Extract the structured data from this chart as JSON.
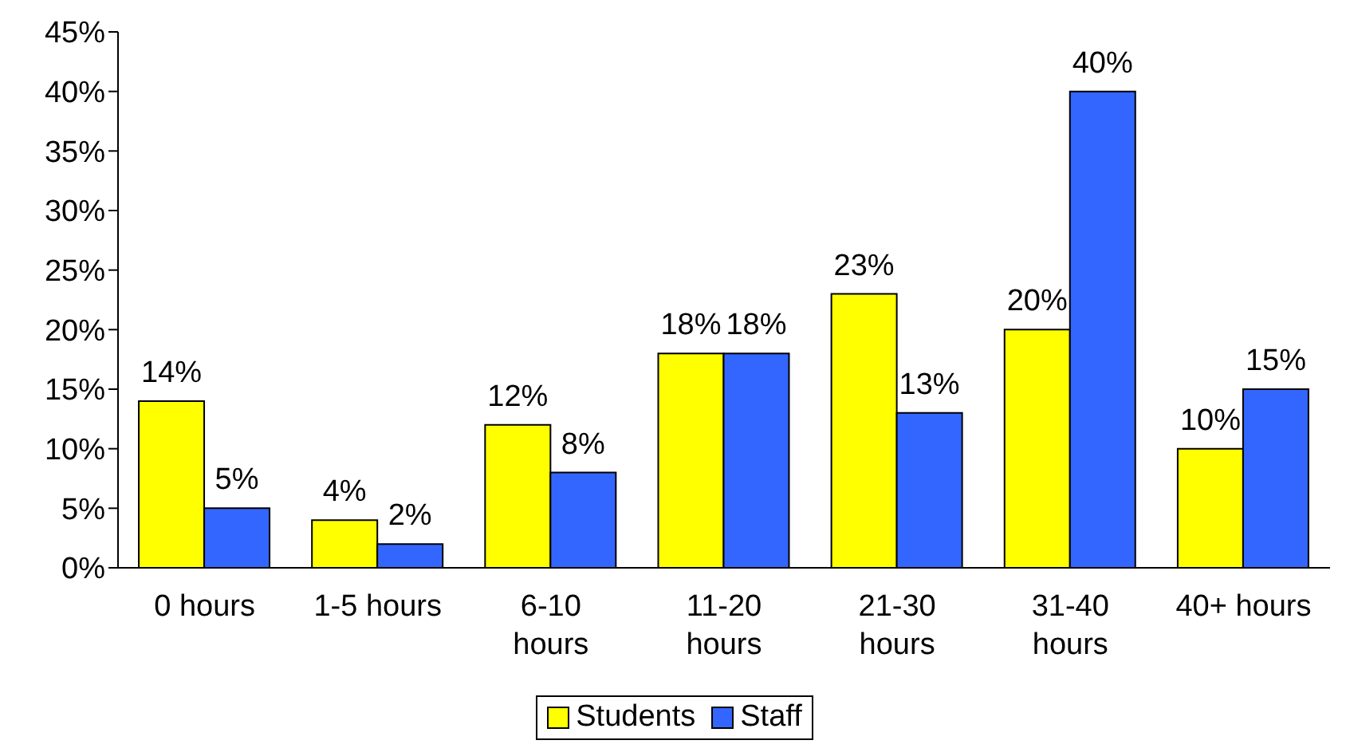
{
  "chart_data": {
    "type": "bar",
    "categories": [
      "0 hours",
      "1-5 hours",
      "6-10 hours",
      "11-20 hours",
      "21-30 hours",
      "31-40 hours",
      "40+ hours"
    ],
    "series": [
      {
        "name": "Students",
        "color": "#ffff00",
        "values": [
          14,
          4,
          12,
          18,
          23,
          20,
          10
        ],
        "value_labels": [
          "14%",
          "4%",
          "12%",
          "18%",
          "23%",
          "20%",
          "10%"
        ]
      },
      {
        "name": "Staff",
        "color": "#3366ff",
        "values": [
          5,
          2,
          8,
          18,
          13,
          40,
          15
        ],
        "value_labels": [
          "5%",
          "2%",
          "8%",
          "18%",
          "13%",
          "40%",
          "15%"
        ]
      }
    ],
    "ylim": [
      0,
      45
    ],
    "yticks": [
      {
        "value": 0,
        "label": "0%"
      },
      {
        "value": 5,
        "label": "5%"
      },
      {
        "value": 10,
        "label": "10%"
      },
      {
        "value": 15,
        "label": "15%"
      },
      {
        "value": 20,
        "label": "20%"
      },
      {
        "value": 25,
        "label": "25%"
      },
      {
        "value": 30,
        "label": "30%"
      },
      {
        "value": 35,
        "label": "35%"
      },
      {
        "value": 40,
        "label": "40%"
      },
      {
        "value": 45,
        "label": "45%"
      }
    ],
    "grid": false,
    "legend": "bottom"
  }
}
